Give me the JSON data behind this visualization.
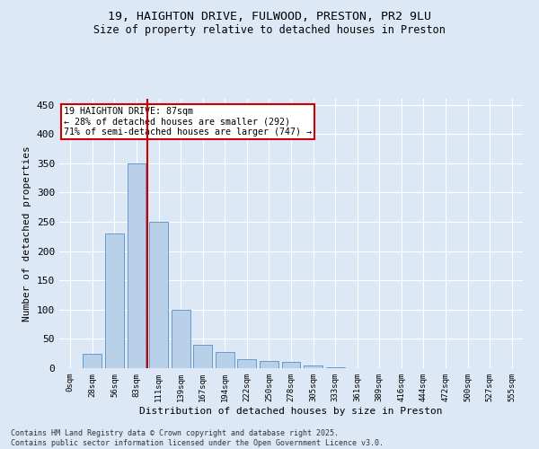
{
  "title_line1": "19, HAIGHTON DRIVE, FULWOOD, PRESTON, PR2 9LU",
  "title_line2": "Size of property relative to detached houses in Preston",
  "xlabel": "Distribution of detached houses by size in Preston",
  "ylabel": "Number of detached properties",
  "bar_labels": [
    "0sqm",
    "28sqm",
    "56sqm",
    "83sqm",
    "111sqm",
    "139sqm",
    "167sqm",
    "194sqm",
    "222sqm",
    "250sqm",
    "278sqm",
    "305sqm",
    "333sqm",
    "361sqm",
    "389sqm",
    "416sqm",
    "444sqm",
    "472sqm",
    "500sqm",
    "527sqm",
    "555sqm"
  ],
  "bar_values": [
    0,
    25,
    230,
    350,
    250,
    100,
    40,
    28,
    15,
    12,
    10,
    5,
    2,
    0,
    0,
    0,
    0,
    0,
    0,
    0,
    0
  ],
  "bar_color": "#b8d0e8",
  "bar_edge_color": "#6699cc",
  "ylim": [
    0,
    460
  ],
  "vline_x": 3.5,
  "vline_color": "#cc0000",
  "annotation_text": "19 HAIGHTON DRIVE: 87sqm\n← 28% of detached houses are smaller (292)\n71% of semi-detached houses are larger (747) →",
  "annotation_box_color": "#ffffff",
  "annotation_box_edge": "#cc0000",
  "footer_text": "Contains HM Land Registry data © Crown copyright and database right 2025.\nContains public sector information licensed under the Open Government Licence v3.0.",
  "bg_color": "#dce8f5",
  "plot_bg_color": "#dce8f5",
  "grid_color": "#ffffff",
  "yticks": [
    0,
    50,
    100,
    150,
    200,
    250,
    300,
    350,
    400,
    450
  ]
}
